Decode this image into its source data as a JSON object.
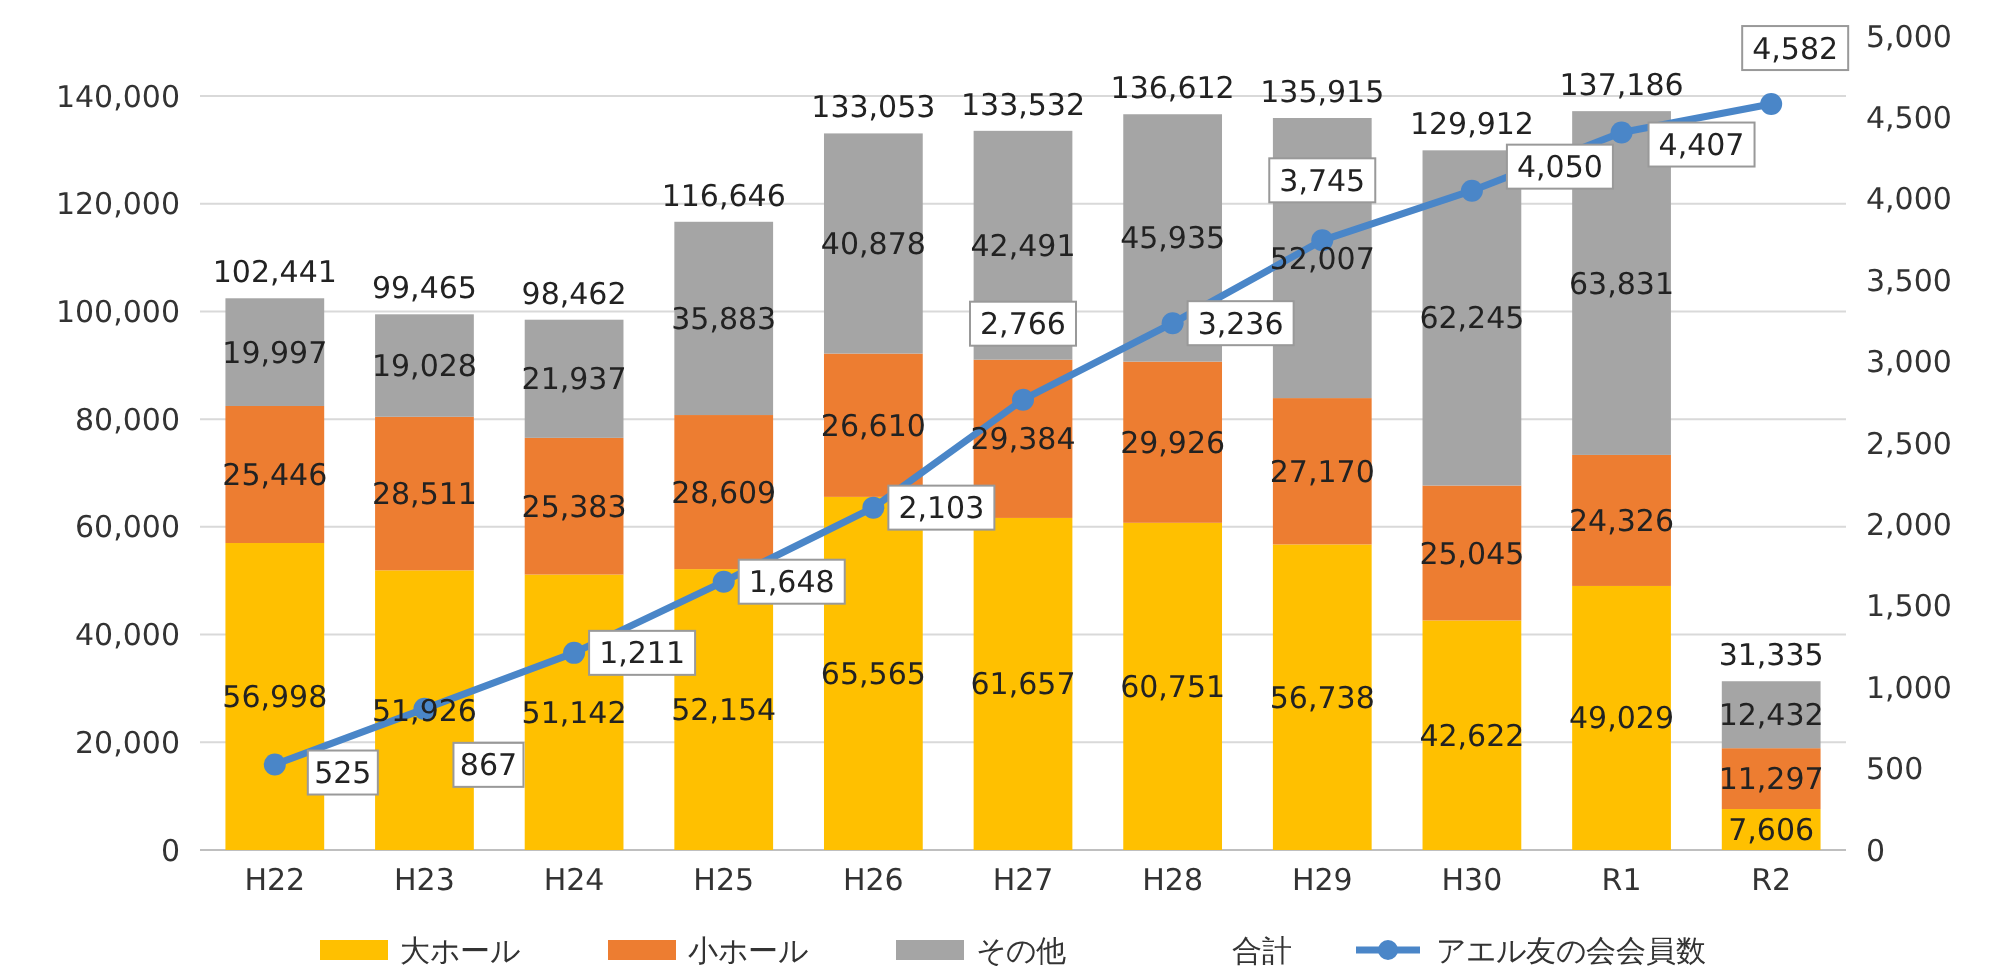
{
  "chart_data": {
    "type": "bar",
    "stacked": true,
    "categories": [
      "H22",
      "H23",
      "H24",
      "H25",
      "H26",
      "H27",
      "H28",
      "H29",
      "H30",
      "R1",
      "R2"
    ],
    "series": [
      {
        "name": "大ホール",
        "color": "#ffc000",
        "values": [
          56998,
          51926,
          51142,
          52154,
          65565,
          61657,
          60751,
          56738,
          42622,
          49029,
          7606
        ],
        "value_labels": [
          "56,998",
          "51,926",
          "51,142",
          "52,154",
          "65,565",
          "61,657",
          "60,751",
          "56,738",
          "42,622",
          "49,029",
          "7,606"
        ]
      },
      {
        "name": "小ホール",
        "color": "#ed7d31",
        "values": [
          25446,
          28511,
          25383,
          28609,
          26610,
          29384,
          29926,
          27170,
          25045,
          24326,
          11297
        ],
        "value_labels": [
          "25,446",
          "28,511",
          "25,383",
          "28,609",
          "26,610",
          "29,384",
          "29,926",
          "27,170",
          "25,045",
          "24,326",
          "11,297"
        ]
      },
      {
        "name": "その他",
        "color": "#a5a5a5",
        "values": [
          19997,
          19028,
          21937,
          35883,
          40878,
          42491,
          45935,
          52007,
          62245,
          63831,
          12432
        ],
        "value_labels": [
          "19,997",
          "19,028",
          "21,937",
          "35,883",
          "40,878",
          "42,491",
          "45,935",
          "52,007",
          "62,245",
          "63,831",
          "12,432"
        ]
      },
      {
        "name": "アエル友の会会員数",
        "type": "line",
        "axis": "y2",
        "color": "#4a86c8",
        "marker": "circle",
        "values": [
          525,
          867,
          1211,
          1648,
          2103,
          2766,
          3236,
          3745,
          4050,
          4407,
          4582
        ],
        "value_labels": [
          "525",
          "867",
          "1,211",
          "1,648",
          "2,103",
          "2,766",
          "3,236",
          "3,745",
          "4,050",
          "4,407",
          "4,582"
        ]
      }
    ],
    "totals": [
      "102,441",
      "99,465",
      "98,462",
      "116,646",
      "133,053",
      "133,532",
      "136,612",
      "135,915",
      "129,912",
      "137,186",
      "31,335"
    ],
    "annotations": [
      "合計"
    ],
    "ylim": [
      0,
      140000
    ],
    "yticks": [
      {
        "value": 0,
        "label": "0"
      },
      {
        "value": 20000,
        "label": "20,000"
      },
      {
        "value": 40000,
        "label": "40,000"
      },
      {
        "value": 60000,
        "label": "60,000"
      },
      {
        "value": 80000,
        "label": "80,000"
      },
      {
        "value": 100000,
        "label": "100,000"
      },
      {
        "value": 120000,
        "label": "120,000"
      },
      {
        "value": 140000,
        "label": "140,000"
      }
    ],
    "y2lim": [
      0,
      5000
    ],
    "y2ticks": [
      {
        "value": 0,
        "label": "0"
      },
      {
        "value": 500,
        "label": "500"
      },
      {
        "value": 1000,
        "label": "1,000"
      },
      {
        "value": 1500,
        "label": "1,500"
      },
      {
        "value": 2000,
        "label": "2,000"
      },
      {
        "value": 2500,
        "label": "2,500"
      },
      {
        "value": 3000,
        "label": "3,000"
      },
      {
        "value": 3500,
        "label": "3,500"
      },
      {
        "value": 4000,
        "label": "4,000"
      },
      {
        "value": 4500,
        "label": "4,500"
      },
      {
        "value": 5000,
        "label": "5,000"
      }
    ],
    "grid": "y",
    "legend": "bottom"
  }
}
